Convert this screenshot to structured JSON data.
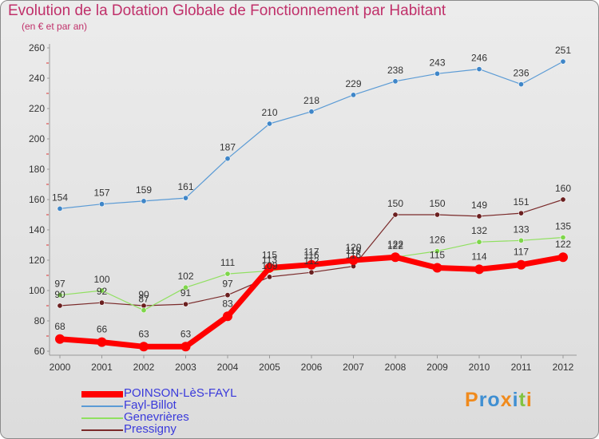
{
  "header": {
    "title": "Evolution de la Dotation Globale de Fonctionnement par Habitant",
    "subtitle": "(en € et par an)"
  },
  "chart_data": {
    "type": "line",
    "title": "Evolution de la Dotation Globale de Fonctionnement par Habitant",
    "subtitle": "(en € et par an)",
    "xlabel": "",
    "ylabel": "",
    "ylim": [
      60,
      260
    ],
    "yticks": [
      60,
      80,
      100,
      120,
      140,
      160,
      180,
      200,
      220,
      240,
      260
    ],
    "grid": false,
    "categories": [
      "2000",
      "2001",
      "2002",
      "2003",
      "2004",
      "2005",
      "2006",
      "2007",
      "2008",
      "2009",
      "2010",
      "2011",
      "2012"
    ],
    "series": [
      {
        "name": "POINSON-LèS-FAYL",
        "color": "#ff0000",
        "values": [
          68,
          66,
          63,
          63,
          83,
          115,
          117,
          120,
          122,
          115,
          114,
          117,
          122
        ]
      },
      {
        "name": "Fayl-Billot",
        "color": "#5b9bd5",
        "values": [
          154,
          157,
          159,
          161,
          187,
          210,
          218,
          229,
          238,
          243,
          246,
          236,
          251
        ]
      },
      {
        "name": "Genevrières",
        "color": "#90e060",
        "values": [
          97,
          100,
          87,
          102,
          111,
          113,
          116,
          119,
          122,
          126,
          132,
          133,
          135
        ]
      },
      {
        "name": "Pressigny",
        "color": "#7a2a2a",
        "values": [
          90,
          92,
          90,
          91,
          97,
          109,
          112,
          116,
          150,
          150,
          149,
          151,
          160
        ]
      }
    ],
    "legend_position": "bottom-left"
  },
  "logo": {
    "letters": [
      "P",
      "r",
      "o",
      "x",
      "i",
      "t",
      "i"
    ],
    "colors": [
      "#f08a1c",
      "#3f8fd2",
      "#3f8fd2",
      "#f08a1c",
      "#3f8fd2",
      "#82c341",
      "#f08a1c"
    ]
  }
}
